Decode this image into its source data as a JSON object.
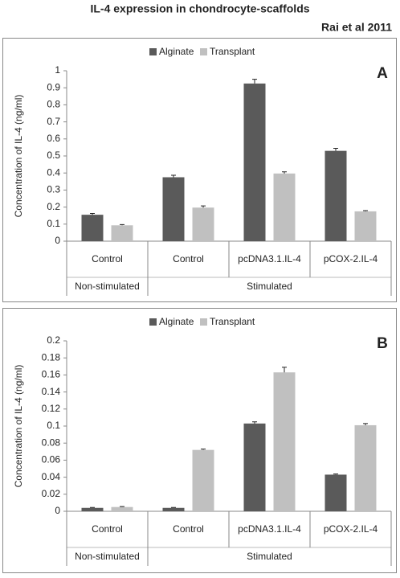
{
  "title": "IL-4 expression in chondrocyte-scaffolds",
  "subtitle": "Rai et al 2011",
  "chart_data": [
    {
      "type": "bar",
      "label": "A",
      "y_label": "Concentration of IL-4 (ng/ml)",
      "categories": [
        "Control",
        "Control",
        "pcDNA3.1.IL-4",
        "pCOX-2.IL-4"
      ],
      "groups": [
        {
          "name": "Non-stimulated",
          "count": 1
        },
        {
          "name": "Stimulated",
          "count": 3
        }
      ],
      "series": [
        {
          "name": "Alginate",
          "color": "#5a5a5a",
          "values": [
            0.155,
            0.375,
            0.925,
            0.53
          ],
          "errors": [
            0.008,
            0.012,
            0.025,
            0.015
          ]
        },
        {
          "name": "Transplant",
          "color": "#c0c0c0",
          "values": [
            0.093,
            0.197,
            0.397,
            0.175
          ],
          "errors": [
            0.004,
            0.01,
            0.01,
            0.004
          ]
        }
      ],
      "ylim": [
        0,
        1
      ],
      "yticks": [
        0,
        0.1,
        0.2,
        0.3,
        0.4,
        0.5,
        0.6,
        0.7,
        0.8,
        0.9,
        1
      ],
      "grid": false
    },
    {
      "type": "bar",
      "label": "B",
      "y_label": "Concentration of IL-4 (ng/ml)",
      "categories": [
        "Control",
        "Control",
        "pcDNA3.1.IL-4",
        "pCOX-2.IL-4"
      ],
      "groups": [
        {
          "name": "Non-stimulated",
          "count": 1
        },
        {
          "name": "Stimulated",
          "count": 3
        }
      ],
      "series": [
        {
          "name": "Alginate",
          "color": "#5a5a5a",
          "values": [
            0.004,
            0.004,
            0.103,
            0.043
          ],
          "errors": [
            0.0005,
            0.0005,
            0.002,
            0.0007
          ]
        },
        {
          "name": "Transplant",
          "color": "#c0c0c0",
          "values": [
            0.005,
            0.072,
            0.163,
            0.101
          ],
          "errors": [
            0.0005,
            0.001,
            0.006,
            0.002
          ]
        }
      ],
      "ylim": [
        0,
        0.2
      ],
      "yticks": [
        0,
        0.02,
        0.04,
        0.06,
        0.08,
        0.1,
        0.12,
        0.14,
        0.16,
        0.18,
        0.2
      ],
      "grid": false
    }
  ]
}
